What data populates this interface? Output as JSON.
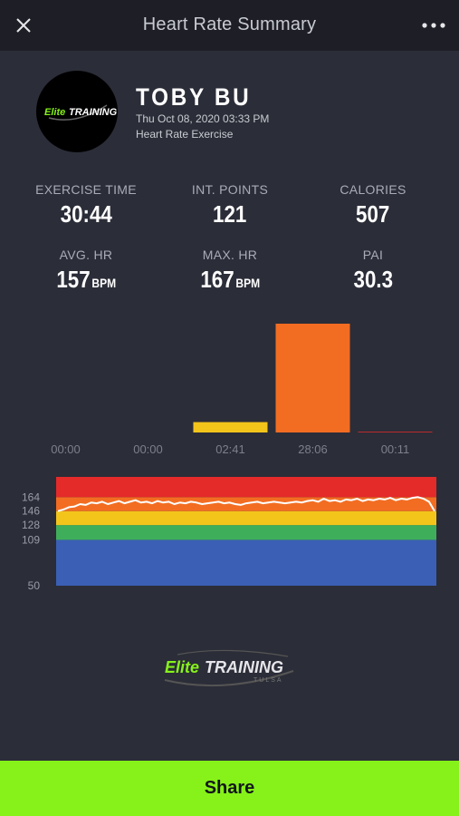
{
  "header": {
    "title": "Heart Rate Summary"
  },
  "profile": {
    "name": "TOBY BU",
    "date": "Thu Oct 08, 2020 03:33 PM",
    "activity": "Heart Rate Exercise",
    "logo_text_a": "Elite",
    "logo_text_b": "TRAINING"
  },
  "stats": {
    "exercise_time": {
      "label": "EXERCISE TIME",
      "value": "30:44"
    },
    "int_points": {
      "label": "INT. POINTS",
      "value": "121"
    },
    "calories": {
      "label": "CALORIES",
      "value": "507"
    },
    "avg_hr": {
      "label": "AVG. HR",
      "value": "157",
      "unit": "BPM"
    },
    "max_hr": {
      "label": "MAX. HR",
      "value": "167",
      "unit": "BPM"
    },
    "pai": {
      "label": "PAI",
      "value": "30.3"
    }
  },
  "chart_data": [
    {
      "type": "bar",
      "categories": [
        "00:00",
        "00:00",
        "02:41",
        "28:06",
        "00:11"
      ],
      "values": [
        0,
        0,
        2.68,
        28.1,
        0.18
      ],
      "colors": [
        "#3a5fb4",
        "#3fae5a",
        "#f3c51b",
        "#f26d22",
        "#e52a2a"
      ],
      "ylim": [
        0,
        28.1
      ]
    },
    {
      "type": "line",
      "series": [
        {
          "values": [
            146,
            148,
            151,
            152,
            155,
            154,
            157,
            156,
            158,
            155,
            157,
            159,
            156,
            158,
            160,
            157,
            158,
            156,
            159,
            157,
            158,
            155,
            157,
            156,
            158,
            157,
            155,
            156,
            157,
            158,
            156,
            157,
            155,
            154,
            156,
            157,
            158,
            156,
            157,
            158,
            157,
            156,
            157,
            158,
            157,
            159,
            160,
            158,
            162,
            159,
            160,
            158,
            161,
            160,
            162,
            159,
            161,
            160,
            162,
            161,
            163,
            160,
            162,
            161,
            163,
            164,
            162,
            158,
            146
          ]
        }
      ],
      "yticks": [
        164,
        146,
        128,
        109,
        50
      ],
      "zones": [
        {
          "from": 50,
          "to": 109,
          "color": "#3a5fb4"
        },
        {
          "from": 109,
          "to": 128,
          "color": "#3fae5a"
        },
        {
          "from": 128,
          "to": 146,
          "color": "#f3c51b"
        },
        {
          "from": 146,
          "to": 164,
          "color": "#f26d22"
        },
        {
          "from": 164,
          "to": 190,
          "color": "#e52a2a"
        }
      ],
      "ylim": [
        50,
        190
      ],
      "line_color": "#ffffff"
    }
  ],
  "brand": {
    "part1": "Elite",
    "part2": "TRAINING",
    "sub": "TULSA"
  },
  "footer": {
    "share_label": "Share"
  }
}
